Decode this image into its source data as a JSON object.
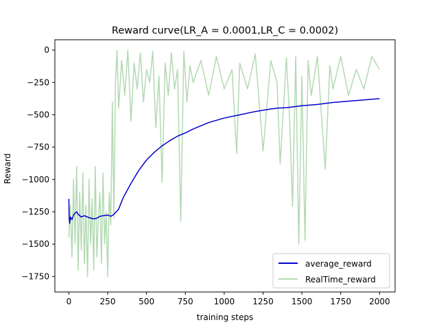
{
  "chart_data": {
    "type": "line",
    "title": "Reward curve(LR_A = 0.0001,LR_C = 0.0002)",
    "xlabel": "training steps",
    "ylabel": "Reward",
    "xlim": [
      -90,
      2100
    ],
    "ylim": [
      -1870,
      80
    ],
    "xticks": [
      0,
      250,
      500,
      750,
      1000,
      1250,
      1500,
      1750,
      2000
    ],
    "yticks": [
      0,
      -250,
      -500,
      -750,
      -1000,
      -1250,
      -1500,
      -1750
    ],
    "grid": false,
    "legend_position": "lower-right",
    "series": [
      {
        "name": "average_reward",
        "color": "#0000cc",
        "x": [
          0,
          2,
          5,
          10,
          20,
          30,
          40,
          50,
          60,
          80,
          100,
          130,
          160,
          180,
          200,
          220,
          250,
          270,
          290,
          320,
          350,
          400,
          450,
          500,
          550,
          600,
          650,
          700,
          750,
          800,
          900,
          1000,
          1100,
          1200,
          1300,
          1350,
          1400,
          1500,
          1600,
          1700,
          1800,
          1900,
          2000
        ],
        "y": [
          -1150,
          -1300,
          -1340,
          -1290,
          -1310,
          -1275,
          -1260,
          -1250,
          -1270,
          -1290,
          -1280,
          -1295,
          -1305,
          -1300,
          -1285,
          -1280,
          -1275,
          -1285,
          -1270,
          -1230,
          -1140,
          -1030,
          -930,
          -850,
          -790,
          -740,
          -700,
          -665,
          -640,
          -610,
          -560,
          -525,
          -500,
          -475,
          -455,
          -448,
          -445,
          -430,
          -420,
          -405,
          -395,
          -385,
          -375
        ]
      },
      {
        "name": "RealTime_reward",
        "color": "#b2d9b2",
        "x": [
          0,
          10,
          20,
          30,
          40,
          50,
          60,
          70,
          80,
          90,
          100,
          110,
          120,
          130,
          140,
          150,
          160,
          170,
          180,
          190,
          200,
          210,
          220,
          230,
          240,
          250,
          260,
          270,
          280,
          290,
          300,
          310,
          320,
          340,
          360,
          380,
          400,
          420,
          440,
          460,
          480,
          500,
          520,
          540,
          560,
          580,
          600,
          620,
          640,
          660,
          680,
          700,
          720,
          740,
          760,
          780,
          800,
          850,
          900,
          950,
          1000,
          1050,
          1080,
          1100,
          1150,
          1200,
          1250,
          1300,
          1340,
          1360,
          1400,
          1420,
          1440,
          1460,
          1480,
          1500,
          1520,
          1540,
          1560,
          1600,
          1650,
          1680,
          1700,
          1750,
          1800,
          1850,
          1900,
          1950,
          2000
        ],
        "y": [
          -1450,
          -1200,
          -1600,
          -1000,
          -1500,
          -900,
          -1700,
          -1100,
          -1550,
          -950,
          -1650,
          -1200,
          -1750,
          -1000,
          -1500,
          -1150,
          -1700,
          -900,
          -1600,
          -1300,
          -1100,
          -1650,
          -950,
          -1500,
          -1250,
          -1750,
          -1100,
          -1350,
          -400,
          -1300,
          -250,
          0,
          -450,
          -80,
          -350,
          0,
          -550,
          -100,
          -300,
          -20,
          -400,
          -150,
          -250,
          -10,
          -600,
          -200,
          -1020,
          -100,
          -350,
          -20,
          -300,
          -150,
          -1320,
          -10,
          -400,
          -120,
          -250,
          -80,
          -350,
          -50,
          -300,
          -150,
          -800,
          -100,
          -300,
          -30,
          -780,
          -80,
          -250,
          -880,
          -60,
          -500,
          -1210,
          -50,
          -1500,
          -200,
          -1470,
          -80,
          -350,
          -50,
          -920,
          -120,
          -300,
          -50,
          -350,
          -150,
          -300,
          -50,
          -150
        ]
      }
    ]
  }
}
